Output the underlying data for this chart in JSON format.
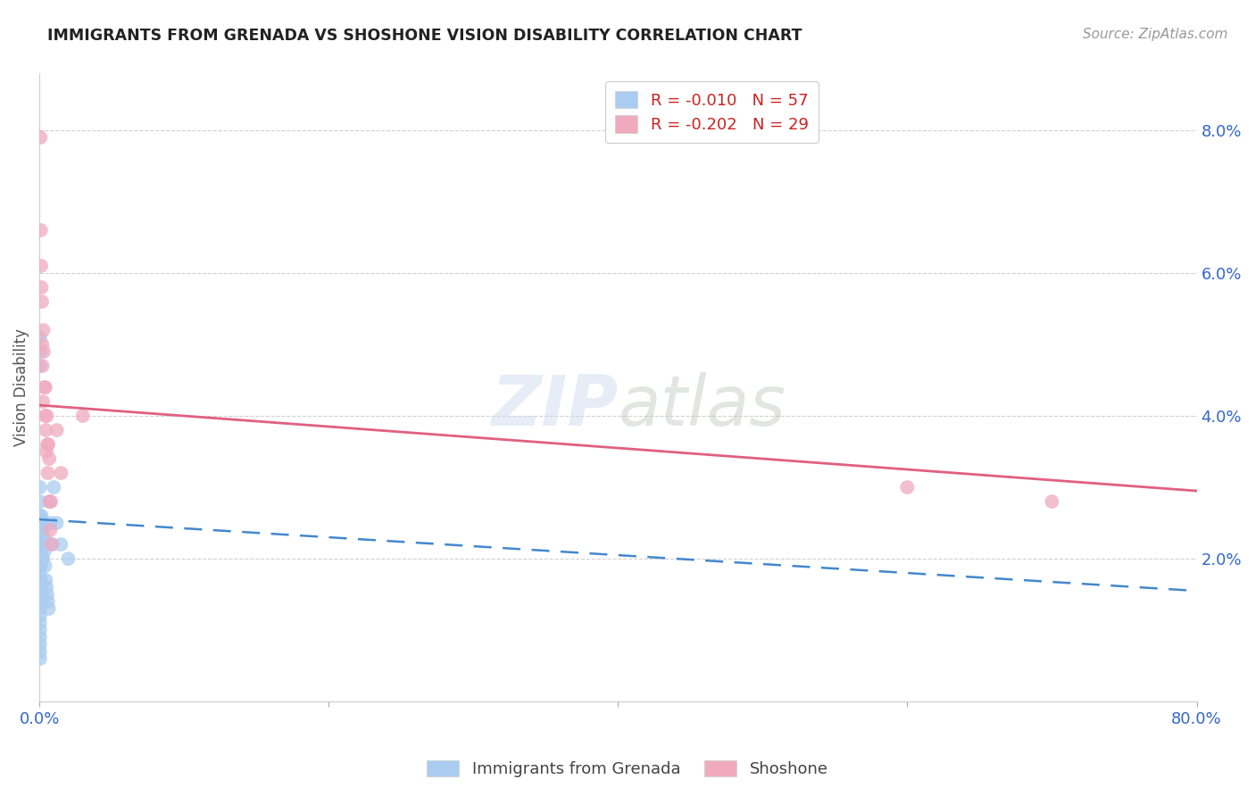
{
  "title": "IMMIGRANTS FROM GRENADA VS SHOSHONE VISION DISABILITY CORRELATION CHART",
  "source": "Source: ZipAtlas.com",
  "ylabel": "Vision Disability",
  "xlim": [
    0.0,
    0.8
  ],
  "ylim": [
    0.0,
    0.088
  ],
  "yticks": [
    0.02,
    0.04,
    0.06,
    0.08
  ],
  "ytick_labels": [
    "2.0%",
    "4.0%",
    "6.0%",
    "8.0%"
  ],
  "xticks": [
    0.0,
    0.2,
    0.4,
    0.6,
    0.8
  ],
  "xtick_labels": [
    "0.0%",
    "",
    "",
    "",
    "80.0%"
  ],
  "legend_label1": "R = -0.010   N = 57",
  "legend_label2": "R = -0.202   N = 29",
  "legend_series1": "Immigrants from Grenada",
  "legend_series2": "Shoshone",
  "color_blue": "#aaccf0",
  "color_pink": "#f0aac0",
  "line_color_blue": "#4488cc",
  "line_color_pink": "#e06080",
  "background": "#ffffff",
  "grid_color": "#cccccc",
  "blue_scatter_x": [
    0.0005,
    0.0005,
    0.0005,
    0.0005,
    0.0005,
    0.0005,
    0.0005,
    0.0005,
    0.0005,
    0.0005,
    0.0005,
    0.0005,
    0.0005,
    0.0005,
    0.0005,
    0.0005,
    0.0005,
    0.0005,
    0.0005,
    0.0005,
    0.0005,
    0.0005,
    0.0005,
    0.0005,
    0.001,
    0.001,
    0.001,
    0.001,
    0.001,
    0.001,
    0.001,
    0.001,
    0.0015,
    0.0015,
    0.0015,
    0.0015,
    0.002,
    0.002,
    0.002,
    0.0025,
    0.0025,
    0.003,
    0.003,
    0.0035,
    0.004,
    0.0045,
    0.005,
    0.0055,
    0.006,
    0.0065,
    0.007,
    0.008,
    0.009,
    0.01,
    0.012,
    0.015,
    0.02
  ],
  "blue_scatter_y": [
    0.051,
    0.049,
    0.047,
    0.03,
    0.028,
    0.026,
    0.024,
    0.022,
    0.021,
    0.02,
    0.019,
    0.018,
    0.017,
    0.016,
    0.015,
    0.014,
    0.013,
    0.012,
    0.011,
    0.01,
    0.009,
    0.008,
    0.007,
    0.006,
    0.025,
    0.023,
    0.021,
    0.019,
    0.017,
    0.016,
    0.015,
    0.014,
    0.026,
    0.024,
    0.022,
    0.02,
    0.024,
    0.022,
    0.02,
    0.022,
    0.02,
    0.025,
    0.023,
    0.021,
    0.019,
    0.017,
    0.016,
    0.015,
    0.014,
    0.013,
    0.028,
    0.025,
    0.022,
    0.03,
    0.025,
    0.022,
    0.02
  ],
  "pink_scatter_x": [
    0.0008,
    0.001,
    0.0012,
    0.0015,
    0.0018,
    0.002,
    0.0022,
    0.0025,
    0.0028,
    0.003,
    0.0035,
    0.004,
    0.0042,
    0.0045,
    0.0048,
    0.0052,
    0.0055,
    0.0058,
    0.0062,
    0.0068,
    0.0072,
    0.0075,
    0.008,
    0.0085,
    0.012,
    0.015,
    0.03,
    0.6,
    0.7
  ],
  "pink_scatter_y": [
    0.079,
    0.066,
    0.061,
    0.058,
    0.056,
    0.05,
    0.047,
    0.042,
    0.052,
    0.049,
    0.044,
    0.04,
    0.044,
    0.038,
    0.035,
    0.04,
    0.036,
    0.032,
    0.036,
    0.034,
    0.028,
    0.024,
    0.028,
    0.022,
    0.038,
    0.032,
    0.04,
    0.03,
    0.028
  ],
  "blue_trend_x": [
    0.0,
    0.8
  ],
  "blue_trend_y": [
    0.0255,
    0.0155
  ],
  "pink_trend_x": [
    0.0,
    0.8
  ],
  "pink_trend_y": [
    0.0415,
    0.0295
  ]
}
